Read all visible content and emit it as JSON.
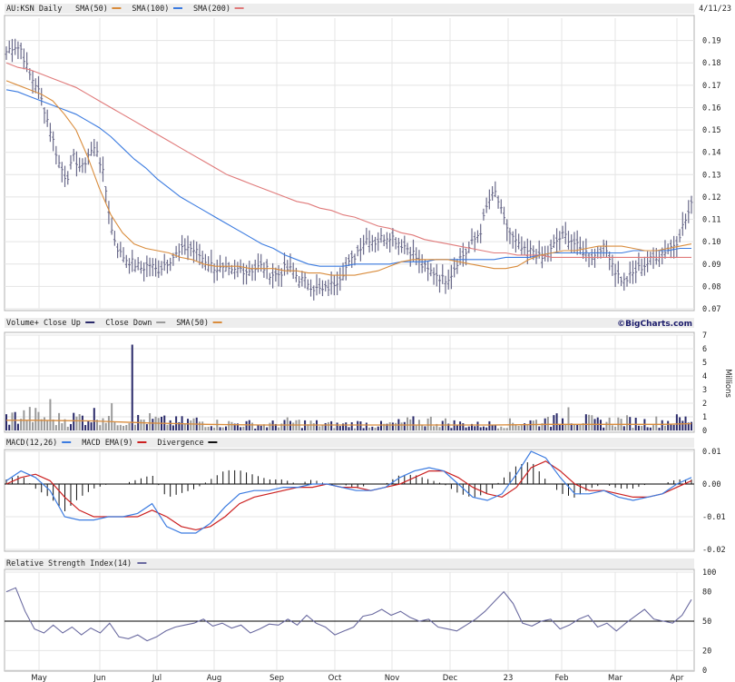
{
  "header": {
    "symbol": "AU:KSN Daily",
    "date": "4/11/23",
    "legend": [
      {
        "label": "SMA(50)",
        "color": "#d98c3c"
      },
      {
        "label": "SMA(100)",
        "color": "#3b7be0"
      },
      {
        "label": "SMA(200)",
        "color": "#e07a7a"
      }
    ]
  },
  "colors": {
    "price_bar": "#6a6a8a",
    "volume_up": "#2a2a6a",
    "volume_down": "#9a9a9a",
    "vol_sma": "#d98c3c",
    "macd": "#3b7be0",
    "macd_ema": "#cc2020",
    "divergence": "#111111",
    "rsi": "#6a6aa0",
    "panel_grid": "#e4e4e4"
  },
  "volume_header": {
    "items": [
      {
        "label": "Volume+ Close Up",
        "color": "#2a2a6a"
      },
      {
        "label": "Close Down",
        "color": "#9a9a9a"
      },
      {
        "label": "SMA(50)",
        "color": "#d98c3c"
      }
    ],
    "brand": "©BigCharts.com",
    "unit": "Millions"
  },
  "macd_header": {
    "items": [
      {
        "label": "MACD(12,26)",
        "color": "#3b7be0"
      },
      {
        "label": "MACD EMA(9)",
        "color": "#cc2020"
      },
      {
        "label": "Divergence",
        "color": "#111111"
      }
    ]
  },
  "rsi_header": {
    "items": [
      {
        "label": "Relative Strength Index(14)",
        "color": "#6a6aa0"
      }
    ]
  },
  "chart_data": [
    {
      "type": "ohlc",
      "panel": "price",
      "ylim": [
        0.07,
        0.2
      ],
      "yticks": [
        "0.19",
        "0.18",
        "0.17",
        "0.16",
        "0.15",
        "0.14",
        "0.13",
        "0.12",
        "0.11",
        "0.10",
        "0.09",
        "0.08",
        "0.07"
      ],
      "x_labels": [
        "May",
        "Jun",
        "Jul",
        "Aug",
        "Sep",
        "Oct",
        "Nov",
        "Dec",
        "23",
        "Feb",
        "Mar",
        "Apr"
      ],
      "close_anchors": [
        0.185,
        0.188,
        0.186,
        0.175,
        0.17,
        0.16,
        0.148,
        0.135,
        0.128,
        0.138,
        0.132,
        0.14,
        0.142,
        0.128,
        0.105,
        0.095,
        0.092,
        0.09,
        0.088,
        0.09,
        0.087,
        0.09,
        0.093,
        0.095,
        0.098,
        0.096,
        0.093,
        0.09,
        0.088,
        0.087,
        0.086,
        0.088,
        0.087,
        0.088,
        0.089,
        0.086,
        0.085,
        0.088,
        0.087,
        0.083,
        0.082,
        0.079,
        0.078,
        0.08,
        0.083,
        0.088,
        0.092,
        0.098,
        0.102,
        0.1,
        0.102,
        0.103,
        0.1,
        0.098,
        0.095,
        0.09,
        0.087,
        0.086,
        0.083,
        0.085,
        0.092,
        0.095,
        0.1,
        0.105,
        0.118,
        0.122,
        0.11,
        0.103,
        0.098,
        0.095,
        0.096,
        0.092,
        0.094,
        0.1,
        0.103,
        0.101,
        0.097,
        0.095,
        0.093,
        0.098,
        0.095,
        0.086,
        0.082,
        0.085,
        0.088,
        0.09,
        0.093,
        0.095,
        0.097,
        0.1,
        0.108,
        0.116
      ],
      "sma50": [
        0.172,
        0.17,
        0.168,
        0.166,
        0.163,
        0.157,
        0.15,
        0.138,
        0.124,
        0.112,
        0.104,
        0.099,
        0.097,
        0.096,
        0.095,
        0.093,
        0.092,
        0.09,
        0.089,
        0.089,
        0.089,
        0.088,
        0.088,
        0.088,
        0.087,
        0.087,
        0.086,
        0.086,
        0.085,
        0.085,
        0.085,
        0.086,
        0.087,
        0.089,
        0.091,
        0.092,
        0.092,
        0.092,
        0.092,
        0.091,
        0.09,
        0.089,
        0.088,
        0.088,
        0.089,
        0.092,
        0.094,
        0.095,
        0.096,
        0.096,
        0.097,
        0.098,
        0.098,
        0.098,
        0.097,
        0.096,
        0.096,
        0.097,
        0.098,
        0.099
      ],
      "sma100": [
        0.168,
        0.167,
        0.165,
        0.163,
        0.161,
        0.159,
        0.157,
        0.154,
        0.151,
        0.147,
        0.142,
        0.137,
        0.133,
        0.128,
        0.124,
        0.12,
        0.117,
        0.114,
        0.111,
        0.108,
        0.105,
        0.102,
        0.099,
        0.097,
        0.094,
        0.092,
        0.09,
        0.089,
        0.089,
        0.089,
        0.09,
        0.09,
        0.09,
        0.09,
        0.091,
        0.091,
        0.091,
        0.092,
        0.092,
        0.092,
        0.092,
        0.092,
        0.092,
        0.093,
        0.093,
        0.093,
        0.094,
        0.095,
        0.095,
        0.095,
        0.095,
        0.095,
        0.095,
        0.095,
        0.096,
        0.096,
        0.096,
        0.096,
        0.097,
        0.097
      ],
      "sma200": [
        0.18,
        0.178,
        0.177,
        0.175,
        0.173,
        0.171,
        0.169,
        0.166,
        0.163,
        0.16,
        0.157,
        0.154,
        0.151,
        0.148,
        0.145,
        0.142,
        0.139,
        0.136,
        0.133,
        0.13,
        0.128,
        0.126,
        0.124,
        0.122,
        0.12,
        0.118,
        0.117,
        0.115,
        0.114,
        0.112,
        0.111,
        0.109,
        0.107,
        0.106,
        0.104,
        0.103,
        0.101,
        0.1,
        0.099,
        0.098,
        0.097,
        0.096,
        0.095,
        0.095,
        0.094,
        0.094,
        0.094,
        0.093,
        0.093,
        0.093,
        0.093,
        0.093,
        0.093,
        0.093,
        0.093,
        0.093,
        0.093,
        0.093,
        0.093,
        0.093
      ]
    },
    {
      "type": "bar",
      "panel": "volume",
      "ylim": [
        0,
        7
      ],
      "yticks": [
        "7",
        "6",
        "5",
        "4",
        "3",
        "2",
        "1",
        "0"
      ],
      "spikes": [
        {
          "pos": 0.065,
          "value": 2.3
        },
        {
          "pos": 0.155,
          "value": 2.0
        },
        {
          "pos": 0.185,
          "value": 6.3
        },
        {
          "pos": 0.82,
          "value": 1.7
        },
        {
          "pos": 0.79,
          "value": 1.0
        }
      ],
      "baseline_anchors": [
        0.9,
        1.1,
        0.8,
        0.9,
        1.2,
        0.7,
        0.8,
        0.6,
        0.7,
        0.5,
        0.5,
        0.4,
        0.6,
        0.5,
        0.4,
        0.5,
        0.4,
        0.6,
        0.7,
        0.5,
        0.4,
        0.5,
        0.6,
        0.7,
        0.9,
        0.6,
        0.7,
        0.6,
        0.7,
        0.8
      ],
      "sma50": [
        0.75,
        0.75,
        0.72,
        0.7,
        0.62,
        0.55,
        0.5,
        0.45,
        0.42,
        0.4,
        0.4,
        0.4,
        0.4,
        0.4,
        0.4,
        0.4,
        0.4,
        0.4,
        0.42,
        0.45,
        0.45,
        0.45,
        0.45,
        0.45,
        0.5
      ]
    },
    {
      "type": "line",
      "panel": "macd",
      "ylim": [
        -0.02,
        0.01
      ],
      "yticks": [
        "0.01",
        "0.00",
        "-0.01",
        "-0.02"
      ],
      "macd": [
        0.001,
        0.004,
        0.002,
        -0.002,
        -0.01,
        -0.011,
        -0.011,
        -0.01,
        -0.01,
        -0.009,
        -0.006,
        -0.013,
        -0.015,
        -0.015,
        -0.012,
        -0.007,
        -0.003,
        -0.002,
        -0.002,
        -0.001,
        -0.001,
        0.0,
        0.0,
        -0.001,
        -0.002,
        -0.002,
        -0.001,
        0.002,
        0.004,
        0.005,
        0.004,
        0.0,
        -0.004,
        -0.005,
        -0.003,
        0.003,
        0.01,
        0.008,
        0.002,
        -0.003,
        -0.003,
        -0.002,
        -0.004,
        -0.005,
        -0.004,
        -0.003,
        0.0,
        0.002
      ],
      "signal": [
        0.0,
        0.002,
        0.003,
        0.001,
        -0.004,
        -0.008,
        -0.01,
        -0.01,
        -0.01,
        -0.01,
        -0.008,
        -0.01,
        -0.013,
        -0.014,
        -0.013,
        -0.01,
        -0.006,
        -0.004,
        -0.003,
        -0.002,
        -0.001,
        -0.001,
        0.0,
        -0.001,
        -0.001,
        -0.002,
        -0.001,
        0.0,
        0.002,
        0.004,
        0.004,
        0.002,
        -0.001,
        -0.003,
        -0.004,
        -0.001,
        0.005,
        0.007,
        0.004,
        0.0,
        -0.002,
        -0.002,
        -0.003,
        -0.004,
        -0.004,
        -0.003,
        -0.001,
        0.001
      ]
    },
    {
      "type": "line",
      "panel": "rsi",
      "ylim": [
        0,
        100
      ],
      "yticks": [
        "100",
        "80",
        "50",
        "20",
        "0"
      ],
      "reference": 50,
      "rsi": [
        80,
        84,
        60,
        42,
        38,
        46,
        38,
        44,
        36,
        43,
        38,
        48,
        34,
        32,
        36,
        30,
        34,
        40,
        44,
        46,
        48,
        52,
        45,
        48,
        43,
        46,
        38,
        42,
        47,
        46,
        52,
        46,
        56,
        48,
        44,
        36,
        40,
        44,
        55,
        57,
        62,
        56,
        60,
        54,
        50,
        52,
        44,
        42,
        40,
        46,
        52,
        60,
        70,
        80,
        68,
        48,
        45,
        50,
        52,
        42,
        46,
        52,
        56,
        44,
        48,
        40,
        48,
        55,
        62,
        52,
        50,
        48,
        56,
        72
      ]
    }
  ]
}
